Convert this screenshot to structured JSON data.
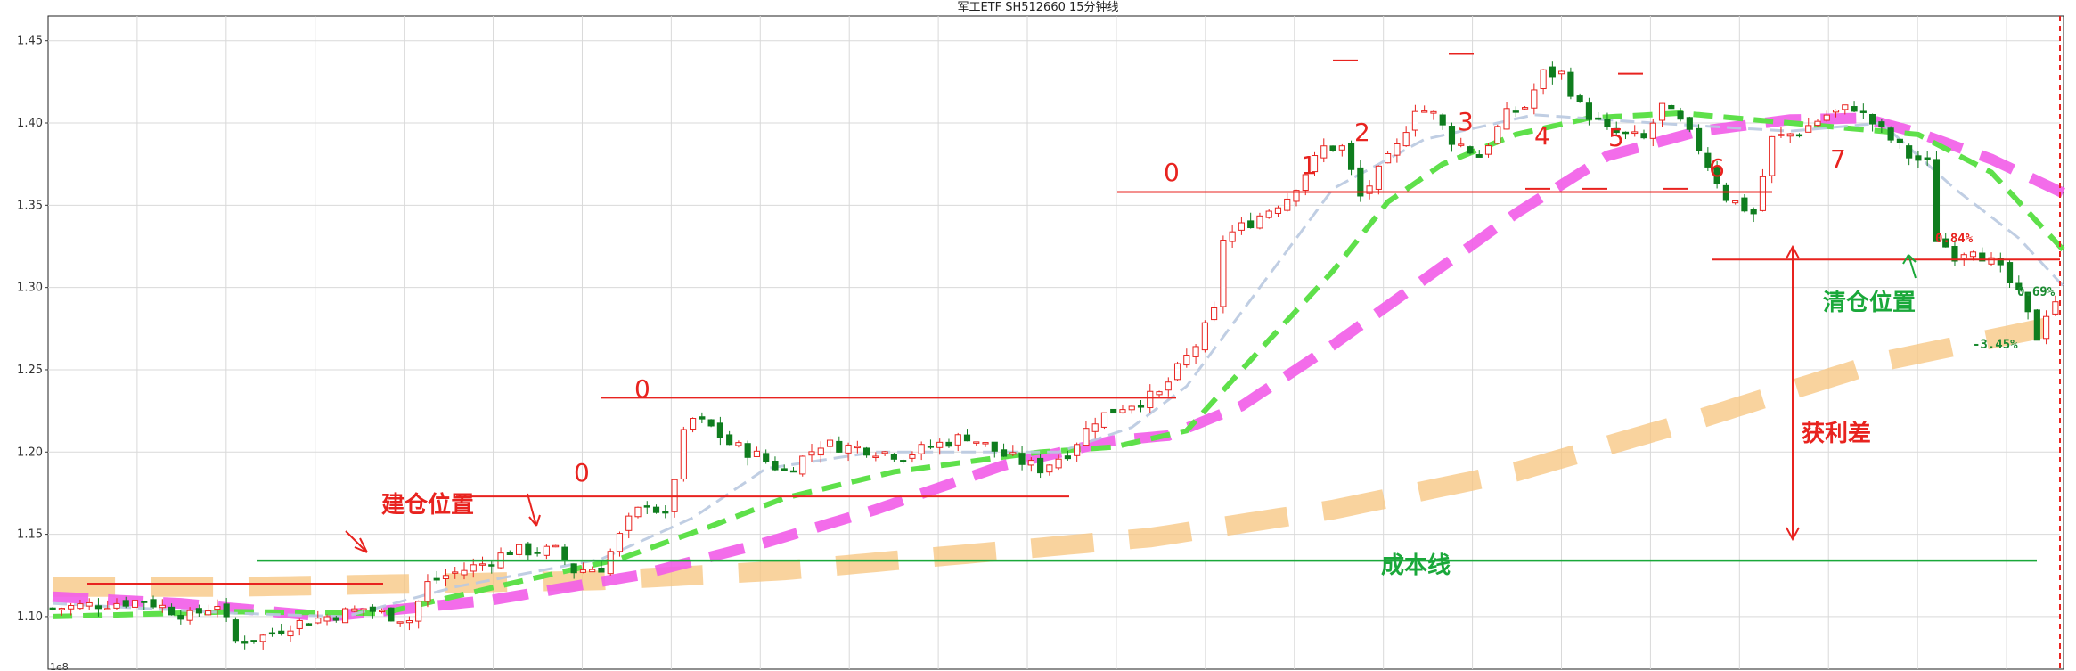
{
  "chart_data": {
    "type": "candlestick",
    "title": "军工ETF SH512660 15分钟线",
    "x_corner_label": "1e8",
    "ylim": [
      1.068,
      1.465
    ],
    "y_ticks": [
      "1.10",
      "1.15",
      "1.20",
      "1.25",
      "1.30",
      "1.35",
      "1.40",
      "1.45"
    ],
    "grid": true,
    "candles": {
      "count": 220,
      "close_anchors": [
        [
          0,
          1.105
        ],
        [
          10,
          1.11
        ],
        [
          15,
          1.1
        ],
        [
          18,
          1.108
        ],
        [
          20,
          1.085
        ],
        [
          23,
          1.088
        ],
        [
          26,
          1.095
        ],
        [
          30,
          1.1
        ],
        [
          34,
          1.105
        ],
        [
          36,
          1.102
        ],
        [
          39,
          1.098
        ],
        [
          41,
          1.12
        ],
        [
          43,
          1.125
        ],
        [
          47,
          1.132
        ],
        [
          50,
          1.14
        ],
        [
          55,
          1.14
        ],
        [
          57,
          1.128
        ],
        [
          60,
          1.13
        ],
        [
          63,
          1.158
        ],
        [
          65,
          1.17
        ],
        [
          67,
          1.16
        ],
        [
          69,
          1.21
        ],
        [
          70,
          1.22
        ],
        [
          72,
          1.215
        ],
        [
          74,
          1.205
        ],
        [
          77,
          1.198
        ],
        [
          80,
          1.188
        ],
        [
          84,
          1.205
        ],
        [
          89,
          1.202
        ],
        [
          93,
          1.198
        ],
        [
          97,
          1.205
        ],
        [
          100,
          1.21
        ],
        [
          104,
          1.198
        ],
        [
          108,
          1.19
        ],
        [
          111,
          1.2
        ],
        [
          114,
          1.22
        ],
        [
          117,
          1.228
        ],
        [
          121,
          1.235
        ],
        [
          125,
          1.265
        ],
        [
          127,
          1.285
        ],
        [
          128,
          1.33
        ],
        [
          131,
          1.34
        ],
        [
          135,
          1.355
        ],
        [
          139,
          1.385
        ],
        [
          141,
          1.385
        ],
        [
          143,
          1.355
        ],
        [
          145,
          1.37
        ],
        [
          147,
          1.385
        ],
        [
          149,
          1.41
        ],
        [
          151,
          1.405
        ],
        [
          153,
          1.39
        ],
        [
          156,
          1.38
        ],
        [
          159,
          1.405
        ],
        [
          161,
          1.41
        ],
        [
          163,
          1.43
        ],
        [
          165,
          1.43
        ],
        [
          167,
          1.41
        ],
        [
          170,
          1.395
        ],
        [
          174,
          1.39
        ],
        [
          176,
          1.41
        ],
        [
          178,
          1.4
        ],
        [
          180,
          1.385
        ],
        [
          183,
          1.355
        ],
        [
          186,
          1.345
        ],
        [
          188,
          1.39
        ],
        [
          191,
          1.395
        ],
        [
          194,
          1.405
        ],
        [
          197,
          1.41
        ],
        [
          200,
          1.395
        ],
        [
          203,
          1.38
        ],
        [
          205,
          1.375
        ],
        [
          206,
          1.33
        ],
        [
          208,
          1.32
        ],
        [
          210,
          1.325
        ],
        [
          213,
          1.31
        ],
        [
          215,
          1.295
        ],
        [
          217,
          1.27
        ],
        [
          218,
          1.285
        ],
        [
          220,
          1.3
        ]
      ]
    },
    "moving_averages": [
      {
        "style": "thin light-blue dashed",
        "color": "#b9c9e0",
        "values": [
          [
            0,
            1.108
          ],
          [
            20,
            1.102
          ],
          [
            32,
            1.1
          ],
          [
            44,
            1.118
          ],
          [
            60,
            1.135
          ],
          [
            70,
            1.16
          ],
          [
            78,
            1.19
          ],
          [
            90,
            1.2
          ],
          [
            110,
            1.2
          ],
          [
            118,
            1.215
          ],
          [
            124,
            1.24
          ],
          [
            132,
            1.3
          ],
          [
            140,
            1.36
          ],
          [
            150,
            1.39
          ],
          [
            162,
            1.405
          ],
          [
            175,
            1.4
          ],
          [
            190,
            1.395
          ],
          [
            200,
            1.4
          ],
          [
            208,
            1.36
          ],
          [
            215,
            1.33
          ],
          [
            220,
            1.3
          ]
        ]
      },
      {
        "style": "green dashed",
        "color": "#5ee04a",
        "values": [
          [
            0,
            1.1
          ],
          [
            20,
            1.103
          ],
          [
            36,
            1.102
          ],
          [
            50,
            1.12
          ],
          [
            62,
            1.135
          ],
          [
            72,
            1.155
          ],
          [
            80,
            1.172
          ],
          [
            92,
            1.188
          ],
          [
            108,
            1.2
          ],
          [
            116,
            1.203
          ],
          [
            124,
            1.213
          ],
          [
            132,
            1.262
          ],
          [
            140,
            1.31
          ],
          [
            146,
            1.352
          ],
          [
            152,
            1.375
          ],
          [
            160,
            1.393
          ],
          [
            168,
            1.403
          ],
          [
            178,
            1.406
          ],
          [
            188,
            1.401
          ],
          [
            198,
            1.396
          ],
          [
            204,
            1.393
          ],
          [
            212,
            1.37
          ],
          [
            220,
            1.322
          ]
        ]
      },
      {
        "style": "magenta thick dashed",
        "color": "#f25ce8",
        "values": [
          [
            0,
            1.112
          ],
          [
            14,
            1.108
          ],
          [
            30,
            1.1
          ],
          [
            48,
            1.11
          ],
          [
            64,
            1.125
          ],
          [
            78,
            1.145
          ],
          [
            90,
            1.165
          ],
          [
            104,
            1.192
          ],
          [
            116,
            1.207
          ],
          [
            122,
            1.21
          ],
          [
            130,
            1.228
          ],
          [
            140,
            1.265
          ],
          [
            150,
            1.305
          ],
          [
            160,
            1.345
          ],
          [
            170,
            1.38
          ],
          [
            180,
            1.395
          ],
          [
            190,
            1.402
          ],
          [
            198,
            1.403
          ],
          [
            204,
            1.394
          ],
          [
            212,
            1.378
          ],
          [
            220,
            1.357
          ]
        ]
      },
      {
        "style": "orange very thick dashed",
        "color": "#f7c47e",
        "values": [
          [
            0,
            1.118
          ],
          [
            20,
            1.118
          ],
          [
            40,
            1.12
          ],
          [
            60,
            1.122
          ],
          [
            80,
            1.128
          ],
          [
            100,
            1.138
          ],
          [
            120,
            1.148
          ],
          [
            140,
            1.165
          ],
          [
            160,
            1.188
          ],
          [
            180,
            1.22
          ],
          [
            200,
            1.255
          ],
          [
            220,
            1.278
          ]
        ]
      }
    ],
    "lines": {
      "cost_line_value": 1.134,
      "red_levels": [
        1.12,
        1.173,
        1.233,
        1.358,
        1.317
      ]
    },
    "annotations": {
      "open_position": "建仓位置",
      "clear_position": "清仓位置",
      "profit_gap": "获利差",
      "cost_line": "成本线",
      "pct_top": "0.84%",
      "pct_right": "0.69%",
      "pct_bottom": "-3.45%",
      "wave_marks": [
        "0",
        "0",
        "0",
        "1",
        "2",
        "3",
        "4",
        "5",
        "6",
        "7"
      ]
    },
    "colors": {
      "up_candle": "#e8231f",
      "down_candle": "#0f7d1e",
      "annotation_red": "#e8231f",
      "annotation_green": "#1aa83a",
      "cost_line": "#1aa83a",
      "grid": "#d9d9d9"
    }
  }
}
